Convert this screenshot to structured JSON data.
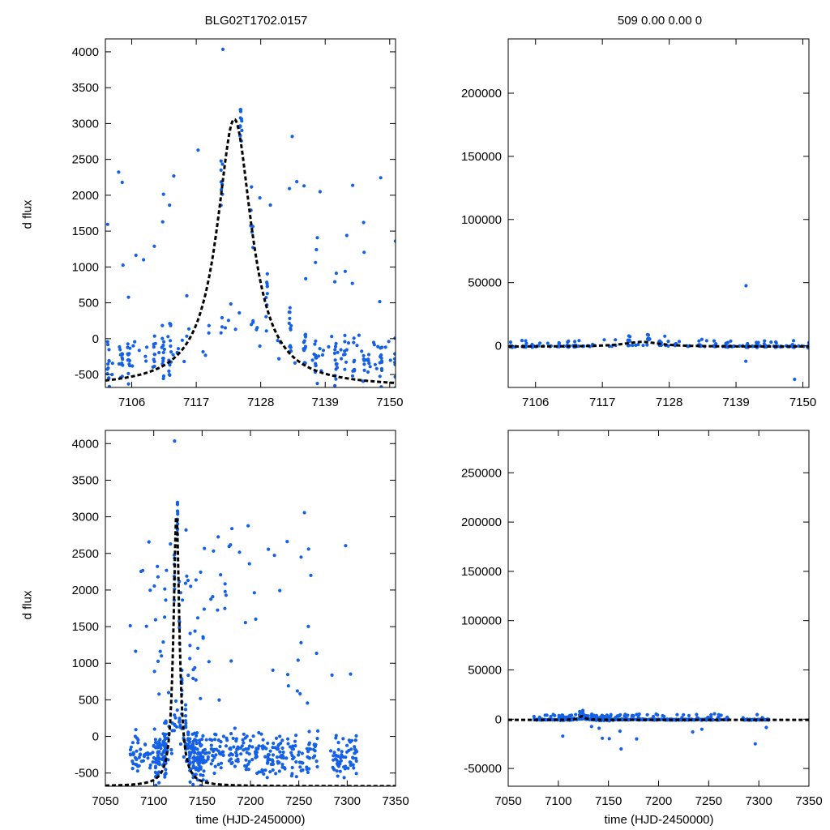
{
  "colors": {
    "points": "#1460e6",
    "model": "#000000",
    "axes": "#000000"
  },
  "chart_data": [
    {
      "id": "top-left",
      "type": "scatter",
      "title": "BLG02T1702.0157",
      "xlabel": "",
      "ylabel": "d flux",
      "xlim": [
        7101.5,
        7151
      ],
      "ylim": [
        -680,
        4180
      ],
      "xticks": [
        7106,
        7117,
        7128,
        7139,
        7150
      ],
      "yticks": [
        -500,
        0,
        500,
        1000,
        1500,
        2000,
        2500,
        3000,
        3500,
        4000
      ],
      "model": {
        "t0": 7123.5,
        "peak": 3060,
        "base": -680,
        "tau": 3.6,
        "style": "dashed"
      }
    },
    {
      "id": "top-right",
      "type": "scatter",
      "title": "509  0.00  0.00  0",
      "xlabel": "",
      "ylabel": "",
      "xlim": [
        7101.5,
        7151
      ],
      "ylim": [
        -33000,
        243000
      ],
      "xticks": [
        7106,
        7117,
        7128,
        7139,
        7150
      ],
      "yticks": [
        0,
        50000,
        100000,
        150000,
        200000
      ],
      "model": {
        "t0": 7123.5,
        "peak": 3060,
        "base": -680,
        "tau": 3.6,
        "style": "dashed"
      }
    },
    {
      "id": "bottom-left",
      "type": "scatter",
      "title": "",
      "xlabel": "time (HJD-2450000)",
      "ylabel": "d flux",
      "xlim": [
        7050,
        7350
      ],
      "ylim": [
        -680,
        4180
      ],
      "xticks": [
        7050,
        7100,
        7150,
        7200,
        7250,
        7300,
        7350
      ],
      "yticks": [
        -500,
        0,
        500,
        1000,
        1500,
        2000,
        2500,
        3000,
        3500,
        4000
      ],
      "model": {
        "t0": 7123.5,
        "peak": 3060,
        "base": -680,
        "tau": 3.6,
        "style": "dashed"
      }
    },
    {
      "id": "bottom-right",
      "type": "scatter",
      "title": "",
      "xlabel": "time (HJD-2450000)",
      "ylabel": "",
      "xlim": [
        7050,
        7350
      ],
      "ylim": [
        -68000,
        293000
      ],
      "xticks": [
        7050,
        7100,
        7150,
        7200,
        7250,
        7300,
        7350
      ],
      "yticks": [
        -50000,
        0,
        50000,
        100000,
        150000,
        200000,
        250000
      ],
      "model": {
        "t0": 7123.5,
        "peak": 3060,
        "base": -680,
        "tau": 3.6,
        "style": "dashed"
      }
    }
  ]
}
